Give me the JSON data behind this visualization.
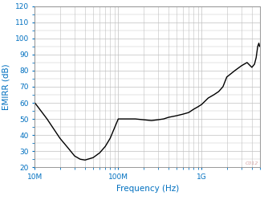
{
  "title": "",
  "xlabel": "Frequency (Hz)",
  "ylabel": "EMIRR (dB)",
  "xlim": [
    10000000.0,
    5000000000.0
  ],
  "ylim": [
    20,
    120
  ],
  "yticks": [
    20,
    30,
    40,
    50,
    60,
    70,
    80,
    90,
    100,
    110,
    120
  ],
  "line_color": "#000000",
  "line_width": 1.0,
  "bg_color": "#ffffff",
  "grid_color": "#c0c0c0",
  "label_color": "#0070c0",
  "watermark": "C012",
  "freq_points": [
    10000000.0,
    14000000.0,
    20000000.0,
    25000000.0,
    30000000.0,
    35000000.0,
    40000000.0,
    50000000.0,
    60000000.0,
    70000000.0,
    80000000.0,
    100000000.0,
    130000000.0,
    160000000.0,
    200000000.0,
    250000000.0,
    300000000.0,
    350000000.0,
    400000000.0,
    500000000.0,
    600000000.0,
    700000000.0,
    800000000.0,
    900000000.0,
    1000000000.0,
    1200000000.0,
    1400000000.0,
    1600000000.0,
    1800000000.0,
    2000000000.0,
    2500000000.0,
    3000000000.0,
    3500000000.0,
    4000000000.0,
    4300000000.0,
    4500000000.0,
    4700000000.0,
    4850000000.0,
    4950000000.0
  ],
  "emirr_points": [
    60,
    50,
    38,
    32,
    27,
    25,
    24.5,
    26,
    29,
    33,
    38,
    50,
    50,
    50,
    49.5,
    49,
    49.5,
    50,
    51,
    52,
    53,
    54,
    56,
    57.5,
    59,
    63,
    65,
    67,
    70,
    76,
    80,
    83,
    85,
    82,
    84,
    88,
    95,
    97,
    95
  ]
}
